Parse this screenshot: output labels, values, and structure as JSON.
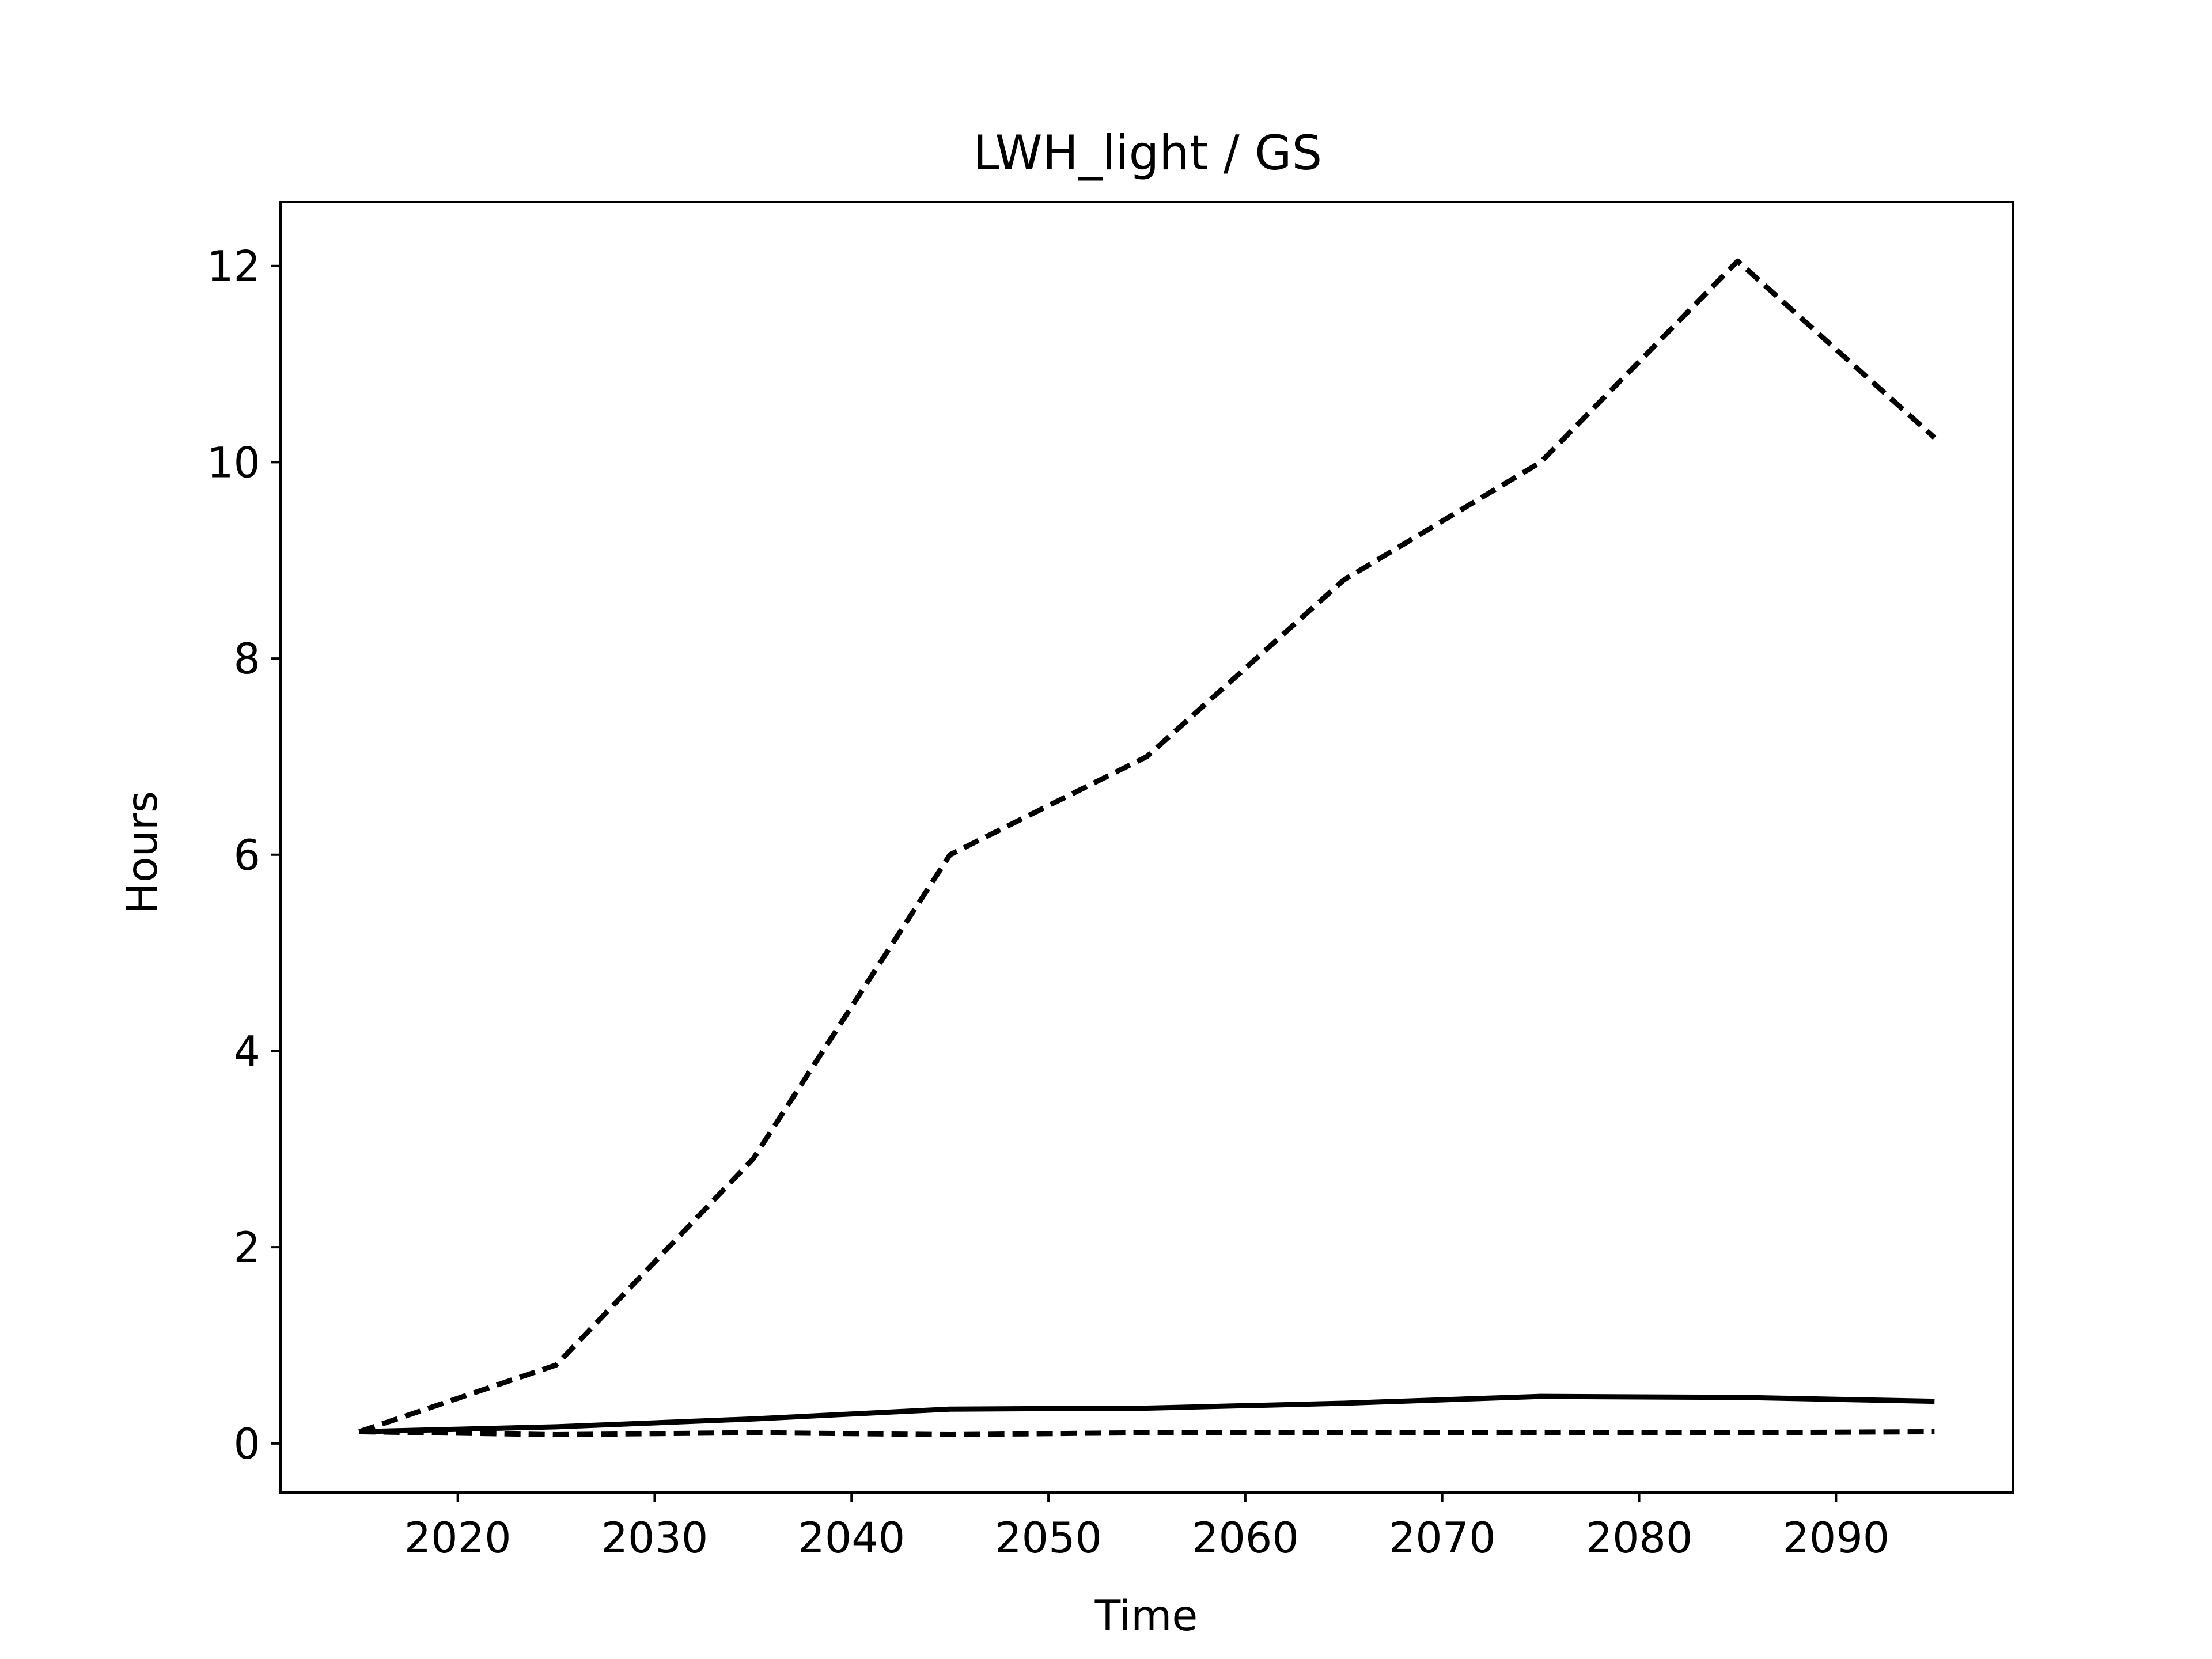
{
  "chart_data": {
    "type": "line",
    "title": "LWH_light / GS",
    "xlabel": "Time",
    "ylabel": "Hours",
    "xlim": [
      2011,
      2099
    ],
    "ylim": [
      -0.5,
      12.65
    ],
    "x_ticks": [
      2020,
      2030,
      2040,
      2050,
      2060,
      2070,
      2080,
      2090
    ],
    "y_ticks": [
      0,
      2,
      4,
      6,
      8,
      10,
      12
    ],
    "grid": false,
    "legend": "none",
    "series": [
      {
        "style": "dashed",
        "color": "#000000",
        "x": [
          2015,
          2025,
          2035,
          2045,
          2055,
          2065,
          2075,
          2085,
          2095
        ],
        "y": [
          0.12,
          0.8,
          2.9,
          6.0,
          7.0,
          8.8,
          10.0,
          12.05,
          10.25
        ]
      },
      {
        "style": "solid",
        "color": "#000000",
        "x": [
          2015,
          2025,
          2035,
          2045,
          2055,
          2065,
          2075,
          2085,
          2095
        ],
        "y": [
          0.12,
          0.17,
          0.25,
          0.35,
          0.36,
          0.41,
          0.48,
          0.47,
          0.43
        ]
      },
      {
        "style": "dashed",
        "color": "#000000",
        "x": [
          2015,
          2025,
          2035,
          2045,
          2055,
          2065,
          2075,
          2085,
          2095
        ],
        "y": [
          0.12,
          0.09,
          0.11,
          0.09,
          0.11,
          0.11,
          0.11,
          0.11,
          0.12
        ]
      }
    ]
  }
}
